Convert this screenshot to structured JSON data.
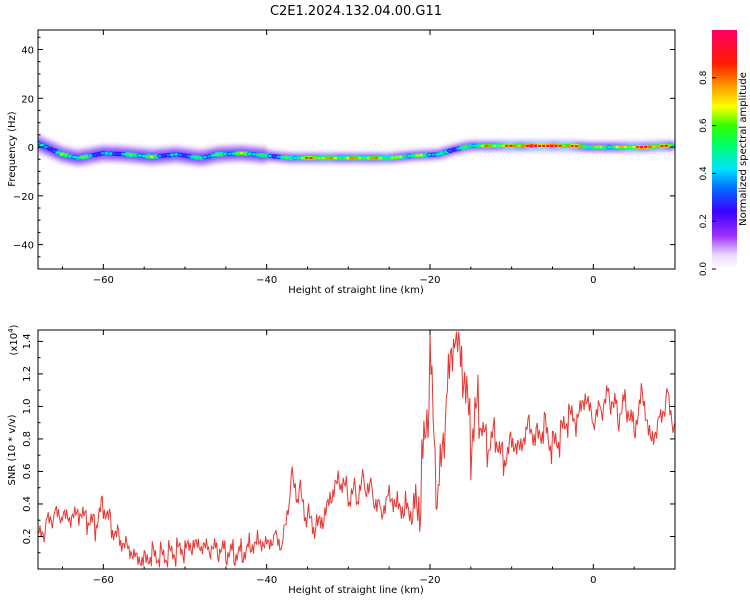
{
  "figure": {
    "title": "C2E1.2024.132.04.00.G11"
  },
  "chart_data": [
    {
      "type": "heatmap",
      "xlabel": "Height of straight line (km)",
      "ylabel": "Frequency (Hz)",
      "xlim": [
        -68,
        10
      ],
      "ylim": [
        -50,
        48
      ],
      "xticks": [
        -60,
        -40,
        -20,
        0
      ],
      "yticks": [
        -40,
        -20,
        0,
        20,
        40
      ],
      "colorbar": {
        "label": "Normalized spectral amplitude",
        "ticks": [
          "0.0",
          "0.2",
          "0.4",
          "0.6",
          "0.8"
        ],
        "range": [
          0,
          1
        ]
      },
      "ridge": [
        {
          "x": -67,
          "f": 0.0,
          "a": 0.4
        },
        {
          "x": -65,
          "f": -3.0,
          "a": 0.55
        },
        {
          "x": -63,
          "f": -4.5,
          "a": 0.5
        },
        {
          "x": -60,
          "f": -2.5,
          "a": 0.4
        },
        {
          "x": -57,
          "f": -3.0,
          "a": 0.45
        },
        {
          "x": -54,
          "f": -4.0,
          "a": 0.55
        },
        {
          "x": -51,
          "f": -3.0,
          "a": 0.35
        },
        {
          "x": -48,
          "f": -4.5,
          "a": 0.45
        },
        {
          "x": -46,
          "f": -3.0,
          "a": 0.55
        },
        {
          "x": -43,
          "f": -2.5,
          "a": 0.55
        },
        {
          "x": -40,
          "f": -3.5,
          "a": 0.45
        },
        {
          "x": -37,
          "f": -4.5,
          "a": 0.55
        },
        {
          "x": -34,
          "f": -4.5,
          "a": 0.75
        },
        {
          "x": -31,
          "f": -4.5,
          "a": 0.7
        },
        {
          "x": -28,
          "f": -4.5,
          "a": 0.65
        },
        {
          "x": -25,
          "f": -4.5,
          "a": 0.7
        },
        {
          "x": -22,
          "f": -3.5,
          "a": 0.55
        },
        {
          "x": -19,
          "f": -3.0,
          "a": 0.45
        },
        {
          "x": -17,
          "f": -1.0,
          "a": 0.45
        },
        {
          "x": -15,
          "f": 0.5,
          "a": 0.5
        },
        {
          "x": -12,
          "f": 0.5,
          "a": 0.75
        },
        {
          "x": -9,
          "f": 0.5,
          "a": 0.85
        },
        {
          "x": -6,
          "f": 0.5,
          "a": 0.95
        },
        {
          "x": -3,
          "f": 0.5,
          "a": 0.9
        },
        {
          "x": 0,
          "f": 0.0,
          "a": 0.55
        },
        {
          "x": 3,
          "f": 0.0,
          "a": 0.65
        },
        {
          "x": 6,
          "f": 0.0,
          "a": 0.85
        },
        {
          "x": 9,
          "f": 0.5,
          "a": 0.75
        }
      ]
    },
    {
      "type": "line",
      "xlabel": "Height of straight line (km)",
      "ylabel": "SNR (10 * v/v)",
      "y_multiplier": "(x10",
      "y_multiplier_exp": "4",
      "y_multiplier_close": ")",
      "xlim": [
        -68,
        10
      ],
      "ylim": [
        0,
        1.47
      ],
      "xticks": [
        -60,
        -40,
        -20,
        0
      ],
      "yticks": [
        0.2,
        0.4,
        0.6,
        0.8,
        1.0,
        1.2,
        1.4
      ],
      "color": "#e53935",
      "series": [
        {
          "x": [
            -68,
            -67,
            -66,
            -65,
            -64,
            -63,
            -62,
            -61,
            -60,
            -59,
            -58,
            -57,
            -56,
            -55,
            -54,
            -53,
            -52,
            -51,
            -50,
            -49,
            -48,
            -47,
            -46,
            -45,
            -44,
            -43,
            -42,
            -41,
            -40,
            -39,
            -38,
            -37,
            -36,
            -35,
            -34,
            -33,
            -32,
            -31,
            -30,
            -29,
            -28,
            -27,
            -26,
            -25,
            -24,
            -23,
            -22,
            -21,
            -20,
            -19,
            -18,
            -17,
            -16,
            -15,
            -14,
            -13,
            -12,
            -11,
            -10,
            -9,
            -8,
            -7,
            -6,
            -5,
            -4,
            -3,
            -2,
            -1,
            0,
            1,
            2,
            3,
            4,
            5,
            6,
            7,
            8,
            9,
            10
          ],
          "values": [
            0.18,
            0.25,
            0.3,
            0.28,
            0.26,
            0.3,
            0.27,
            0.25,
            0.4,
            0.28,
            0.22,
            0.18,
            0.12,
            0.1,
            0.12,
            0.09,
            0.08,
            0.09,
            0.08,
            0.1,
            0.09,
            0.08,
            0.09,
            0.09,
            0.1,
            0.12,
            0.18,
            0.22,
            0.2,
            0.24,
            0.18,
            0.55,
            0.45,
            0.28,
            0.2,
            0.25,
            0.4,
            0.5,
            0.42,
            0.45,
            0.55,
            0.5,
            0.4,
            0.52,
            0.45,
            0.42,
            0.38,
            0.55,
            1.2,
            0.3,
            0.9,
            1.3,
            1.1,
            0.7,
            0.9,
            0.75,
            0.85,
            0.7,
            0.85,
            0.8,
            0.95,
            0.85,
            0.9,
            0.75,
            0.8,
            0.9,
            0.85,
            1.0,
            0.85,
            0.95,
            1.05,
            0.95,
            1.05,
            0.9,
            1.15,
            0.85,
            0.95,
            1.1,
            0.9
          ]
        }
      ]
    }
  ]
}
